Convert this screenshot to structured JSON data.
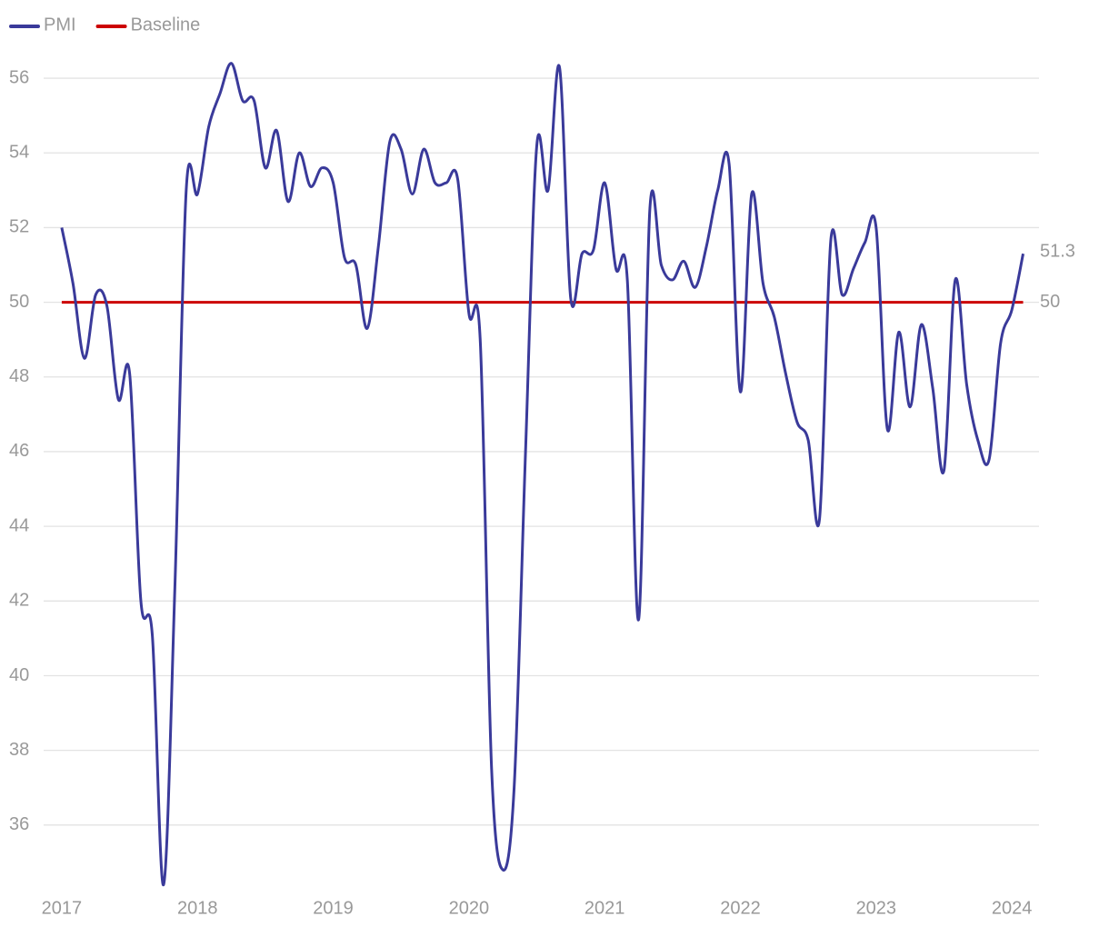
{
  "chart_data": {
    "type": "line",
    "x": [
      2017,
      2017.083,
      2017.167,
      2017.25,
      2017.333,
      2017.417,
      2017.5,
      2017.583,
      2017.667,
      2017.75,
      2017.833,
      2017.917,
      2018,
      2018.083,
      2018.167,
      2018.25,
      2018.333,
      2018.417,
      2018.5,
      2018.583,
      2018.667,
      2018.75,
      2018.833,
      2018.917,
      2019,
      2019.083,
      2019.167,
      2019.25,
      2019.333,
      2019.417,
      2019.5,
      2019.583,
      2019.667,
      2019.75,
      2019.833,
      2019.917,
      2020,
      2020.083,
      2020.167,
      2020.25,
      2020.333,
      2020.417,
      2020.5,
      2020.583,
      2020.667,
      2020.75,
      2020.833,
      2020.917,
      2021,
      2021.083,
      2021.167,
      2021.25,
      2021.333,
      2021.417,
      2021.5,
      2021.583,
      2021.667,
      2021.75,
      2021.833,
      2021.917,
      2022,
      2022.083,
      2022.167,
      2022.25,
      2022.333,
      2022.417,
      2022.5,
      2022.583,
      2022.667,
      2022.75,
      2022.833,
      2022.917,
      2023,
      2023.083,
      2023.167,
      2023.25,
      2023.333,
      2023.417,
      2023.5,
      2023.583,
      2023.667,
      2023.75,
      2023.833,
      2023.917,
      2024,
      2024.083
    ],
    "series": [
      {
        "name": "PMI",
        "color": "#3a3a9a",
        "values": [
          52.0,
          50.5,
          48.5,
          50.2,
          49.9,
          47.4,
          48.1,
          42.0,
          41.1,
          34.4,
          42.3,
          53.0,
          52.9,
          54.7,
          55.6,
          56.4,
          55.4,
          55.4,
          53.6,
          54.6,
          52.7,
          54.0,
          53.1,
          53.6,
          53.2,
          51.2,
          51.0,
          49.3,
          51.5,
          54.3,
          54.1,
          52.9,
          54.1,
          53.2,
          53.2,
          53.3,
          49.7,
          49.0,
          37.5,
          34.8,
          37.0,
          46.0,
          54.2,
          53.0,
          56.3,
          50.1,
          51.3,
          51.4,
          53.2,
          50.9,
          50.6,
          41.5,
          52.5,
          51.0,
          50.6,
          51.1,
          50.4,
          51.5,
          53.0,
          53.7,
          47.6,
          52.9,
          50.5,
          49.6,
          48.1,
          46.8,
          46.3,
          44.2,
          51.7,
          50.2,
          50.9,
          51.6,
          52.0,
          46.6,
          49.2,
          47.2,
          49.4,
          47.7,
          45.5,
          50.6,
          47.8,
          46.3,
          45.8,
          48.9,
          49.8,
          51.3
        ]
      }
    ],
    "baseline": {
      "name": "Baseline",
      "value": 50,
      "color": "#cc0000"
    },
    "xlim": [
      2016.88,
      2024.2
    ],
    "xticks": [
      2017,
      2018,
      2019,
      2020,
      2021,
      2022,
      2023,
      2024
    ],
    "ylim": [
      34,
      57
    ],
    "yticks": [
      36,
      38,
      40,
      42,
      44,
      46,
      48,
      50,
      52,
      54,
      56
    ],
    "grid": true,
    "legend": "top-left"
  }
}
